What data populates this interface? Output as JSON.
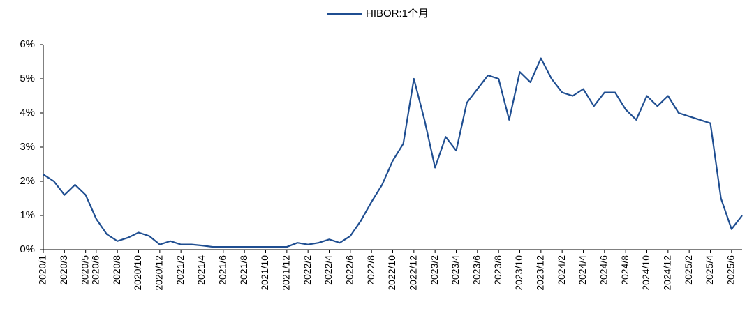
{
  "chart_data": {
    "type": "line",
    "categories": [
      "2020/1",
      null,
      "2020/3",
      null,
      "2020/5",
      "2020/6",
      null,
      "2020/8",
      null,
      "2020/10",
      null,
      "2020/12",
      null,
      "2021/2",
      null,
      "2021/4",
      null,
      "2021/6",
      null,
      "2021/8",
      null,
      "2021/10",
      null,
      "2021/12",
      null,
      "2022/2",
      null,
      "2022/4",
      null,
      "2022/6",
      null,
      "2022/8",
      null,
      "2022/10",
      null,
      "2022/12",
      null,
      "2023/2",
      null,
      "2023/4",
      null,
      "2023/6",
      null,
      "2023/8",
      null,
      "2023/10",
      null,
      "2023/12",
      null,
      "2024/2",
      null,
      "2024/4",
      null,
      "2024/6",
      null,
      "2024/8",
      null,
      "2024/10",
      null,
      "2024/12",
      null,
      "2025/2",
      null,
      "2025/4",
      null,
      "2025/6",
      null
    ],
    "series": [
      {
        "name": "HIBOR:1个月",
        "color": "#1f4e91",
        "values": [
          2.2,
          2.0,
          1.6,
          1.9,
          1.6,
          0.9,
          0.45,
          0.25,
          0.35,
          0.5,
          0.4,
          0.15,
          0.25,
          0.15,
          0.15,
          0.12,
          0.08,
          0.08,
          0.08,
          0.08,
          0.08,
          0.08,
          0.08,
          0.08,
          0.2,
          0.15,
          0.2,
          0.3,
          0.2,
          0.4,
          0.85,
          1.4,
          1.9,
          2.6,
          3.1,
          5.0,
          3.8,
          2.4,
          3.3,
          2.9,
          4.3,
          4.7,
          5.1,
          5.0,
          3.8,
          5.2,
          4.9,
          5.6,
          5.0,
          4.6,
          4.5,
          4.7,
          4.2,
          4.6,
          4.6,
          4.1,
          3.8,
          4.5,
          4.2,
          4.5,
          4.0,
          3.9,
          3.8,
          3.7,
          1.5,
          0.6,
          1.0
        ]
      }
    ],
    "ylim": [
      0,
      6
    ],
    "yticks": [
      {
        "value": 0,
        "label": "0%"
      },
      {
        "value": 1,
        "label": "1%"
      },
      {
        "value": 2,
        "label": "2%"
      },
      {
        "value": 3,
        "label": "3%"
      },
      {
        "value": 4,
        "label": "4%"
      },
      {
        "value": 5,
        "label": "5%"
      },
      {
        "value": 6,
        "label": "6%"
      }
    ],
    "legend": "top"
  }
}
